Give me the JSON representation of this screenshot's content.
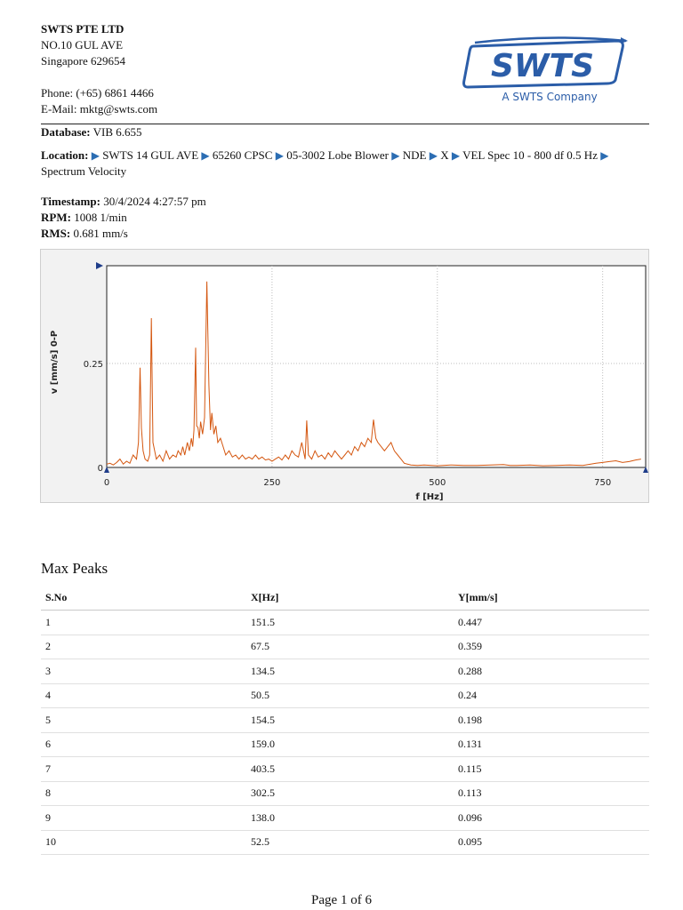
{
  "header": {
    "company": "SWTS PTE LTD",
    "address_line1": "NO.10 GUL AVE",
    "address_line2": "Singapore 629654",
    "phone_label": "Phone:",
    "phone": "(+65) 6861 4466",
    "email_label": "E-Mail:",
    "email": "mktg@swts.com"
  },
  "logo": {
    "wordmark": "SWTS",
    "tagline": "A SWTS Company",
    "color": "#2b5da8"
  },
  "meta": {
    "database_label": "Database:",
    "database": "VIB 6.655",
    "location_label": "Location:",
    "location_path": [
      "SWTS 14 GUL AVE",
      "65260 CPSC",
      "05-3002 Lobe Blower",
      "NDE",
      "X",
      "VEL Spec 10 - 800 df 0.5 Hz",
      "Spectrum Velocity"
    ],
    "timestamp_label": "Timestamp:",
    "timestamp": "30/4/2024 4:27:57 pm",
    "rpm_label": "RPM:",
    "rpm": "1008 1/min",
    "rms_label": "RMS:",
    "rms": "0.681 mm/s",
    "arrow_glyph": "▶"
  },
  "chart_data": {
    "type": "line",
    "xlabel": "f [Hz]",
    "ylabel": "v [mm/s] 0-P",
    "xlim": [
      0,
      815
    ],
    "ylim": [
      0,
      0.485
    ],
    "x_ticks": [
      0,
      250,
      500,
      750
    ],
    "y_ticks": [
      0,
      0.25
    ],
    "y_tick_labels": [
      "0",
      "0.25"
    ],
    "grid": true,
    "line_color": "#d4560f",
    "series": [
      {
        "x": [
          0,
          5,
          10,
          15,
          20,
          25,
          30,
          35,
          40,
          45,
          48,
          50.5,
          52.5,
          55,
          58,
          62,
          65,
          67.5,
          70,
          75,
          80,
          85,
          90,
          95,
          100,
          105,
          108,
          112,
          115,
          118,
          122,
          125,
          128,
          130,
          132,
          134.5,
          136,
          138,
          140,
          142,
          145,
          148,
          151.5,
          154.5,
          157,
          159,
          162,
          165,
          168,
          172,
          176,
          180,
          185,
          190,
          195,
          200,
          205,
          210,
          215,
          220,
          225,
          230,
          235,
          240,
          245,
          250,
          255,
          260,
          265,
          270,
          275,
          280,
          285,
          290,
          295,
          300,
          302.5,
          305,
          310,
          315,
          320,
          325,
          330,
          335,
          340,
          345,
          350,
          355,
          360,
          365,
          370,
          375,
          380,
          385,
          390,
          395,
          400,
          403.5,
          407,
          410,
          415,
          420,
          425,
          430,
          435,
          440,
          445,
          450,
          460,
          470,
          480,
          500,
          520,
          540,
          560,
          580,
          600,
          610,
          620,
          640,
          660,
          680,
          700,
          720,
          740,
          750,
          760,
          770,
          780,
          790,
          800,
          808
        ],
        "y": [
          0.008,
          0.01,
          0.006,
          0.012,
          0.02,
          0.008,
          0.015,
          0.01,
          0.03,
          0.02,
          0.06,
          0.24,
          0.095,
          0.04,
          0.02,
          0.015,
          0.03,
          0.359,
          0.06,
          0.02,
          0.03,
          0.015,
          0.04,
          0.02,
          0.03,
          0.025,
          0.04,
          0.03,
          0.05,
          0.03,
          0.06,
          0.04,
          0.07,
          0.05,
          0.09,
          0.288,
          0.1,
          0.096,
          0.07,
          0.11,
          0.08,
          0.12,
          0.447,
          0.198,
          0.09,
          0.131,
          0.08,
          0.1,
          0.06,
          0.07,
          0.05,
          0.03,
          0.04,
          0.025,
          0.03,
          0.02,
          0.03,
          0.02,
          0.025,
          0.02,
          0.03,
          0.02,
          0.025,
          0.018,
          0.02,
          0.015,
          0.02,
          0.025,
          0.018,
          0.03,
          0.02,
          0.04,
          0.03,
          0.025,
          0.06,
          0.02,
          0.113,
          0.03,
          0.02,
          0.04,
          0.025,
          0.03,
          0.02,
          0.035,
          0.025,
          0.04,
          0.03,
          0.02,
          0.03,
          0.04,
          0.03,
          0.05,
          0.04,
          0.06,
          0.05,
          0.07,
          0.06,
          0.115,
          0.07,
          0.06,
          0.05,
          0.04,
          0.05,
          0.06,
          0.04,
          0.03,
          0.02,
          0.01,
          0.006,
          0.005,
          0.006,
          0.004,
          0.006,
          0.005,
          0.005,
          0.006,
          0.007,
          0.005,
          0.005,
          0.006,
          0.004,
          0.005,
          0.006,
          0.005,
          0.01,
          0.012,
          0.014,
          0.016,
          0.012,
          0.014,
          0.018,
          0.02
        ]
      }
    ]
  },
  "peaks": {
    "title": "Max Peaks",
    "columns": [
      "S.No",
      "X[Hz]",
      "Y[mm/s]"
    ],
    "rows": [
      [
        "1",
        "151.5",
        "0.447"
      ],
      [
        "2",
        "67.5",
        "0.359"
      ],
      [
        "3",
        "134.5",
        "0.288"
      ],
      [
        "4",
        "50.5",
        "0.24"
      ],
      [
        "5",
        "154.5",
        "0.198"
      ],
      [
        "6",
        "159.0",
        "0.131"
      ],
      [
        "7",
        "403.5",
        "0.115"
      ],
      [
        "8",
        "302.5",
        "0.113"
      ],
      [
        "9",
        "138.0",
        "0.096"
      ],
      [
        "10",
        "52.5",
        "0.095"
      ]
    ]
  },
  "footer": {
    "page": "Page 1 of 6"
  }
}
